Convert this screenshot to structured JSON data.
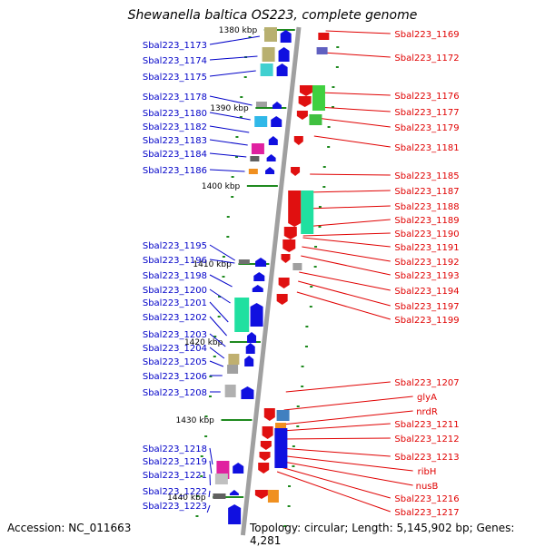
{
  "title": "Shewanella baltica OS223, complete genome",
  "footer": {
    "accession": "Accession: NC_011663",
    "info": "Topology: circular; Length: 5,145,902 bp; Genes: 4,281"
  },
  "colors": {
    "forward_label": "#0000c8",
    "reverse_label": "#e00000",
    "axis": "#a0a0a0",
    "tick": "#1f8a1f"
  },
  "scale_labels": [
    "1380 kbp",
    "1390 kbp",
    "1400 kbp",
    "1410 kbp",
    "1420 kbp",
    "1430 kbp",
    "1440 kbp"
  ],
  "left_labels": [
    "Sbal223_1173",
    "Sbal223_1174",
    "Sbal223_1175",
    "Sbal223_1178",
    "Sbal223_1180",
    "Sbal223_1182",
    "Sbal223_1183",
    "Sbal223_1184",
    "Sbal223_1186",
    "Sbal223_1195",
    "Sbal223_1196",
    "Sbal223_1198",
    "Sbal223_1200",
    "Sbal223_1201",
    "Sbal223_1202",
    "Sbal223_1203",
    "Sbal223_1204",
    "Sbal223_1205",
    "Sbal223_1206",
    "Sbal223_1208",
    "Sbal223_1218",
    "Sbal223_1219",
    "Sbal223_1221",
    "Sbal223_1222",
    "Sbal223_1223"
  ],
  "right_labels": [
    "Sbal223_1169",
    "Sbal223_1172",
    "Sbal223_1176",
    "Sbal223_1177",
    "Sbal223_1179",
    "Sbal223_1181",
    "Sbal223_1185",
    "Sbal223_1187",
    "Sbal223_1188",
    "Sbal223_1189",
    "Sbal223_1190",
    "Sbal223_1191",
    "Sbal223_1192",
    "Sbal223_1193",
    "Sbal223_1194",
    "Sbal223_1197",
    "Sbal223_1199",
    "Sbal223_1207",
    "glyA",
    "nrdR",
    "Sbal223_1211",
    "Sbal223_1212",
    "Sbal223_1213",
    "ribH",
    "nusB",
    "Sbal223_1216",
    "Sbal223_1217"
  ]
}
